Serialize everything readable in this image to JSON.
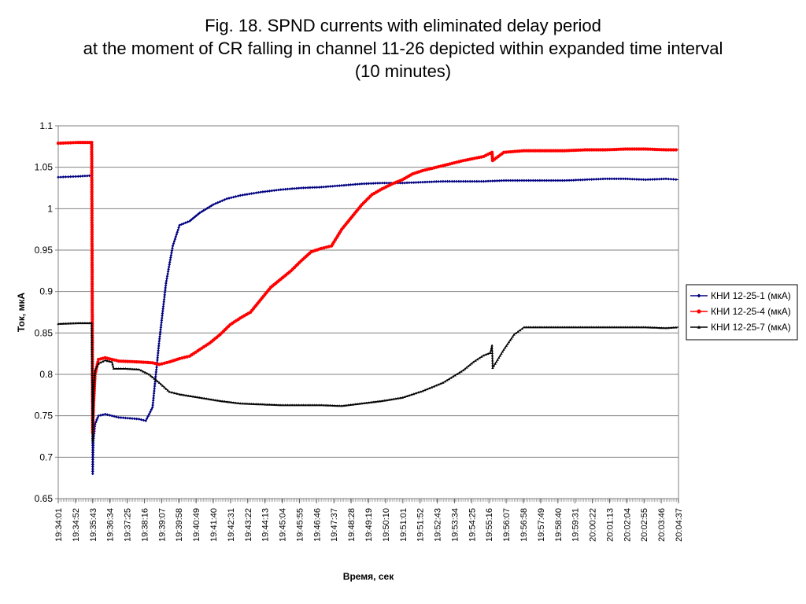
{
  "slide": {
    "title_line1": "Fig. 18. SPND currents with eliminated delay period",
    "title_line2": "at the moment of CR falling in channel 11-26 depicted within expanded time interval",
    "title_line3": "(10 minutes)"
  },
  "chart_data": {
    "type": "line",
    "xlabel": "Время, сек",
    "ylabel": "Ток, мкА",
    "ylim": [
      0.65,
      1.1
    ],
    "yticks": [
      "0.65",
      "0.7",
      "0.75",
      "0.8",
      "0.85",
      "0.9",
      "0.95",
      "1",
      "1.05",
      "1.1"
    ],
    "xlim": [
      "19:34:01",
      "20:04:37"
    ],
    "xticks": [
      "19:34:01",
      "19:34:52",
      "19:35:43",
      "19:36:34",
      "19:37:25",
      "19:38:16",
      "19:39:07",
      "19:39:58",
      "19:40:49",
      "19:41:40",
      "19:42:31",
      "19:43:22",
      "19:44:13",
      "19:45:04",
      "19:45:55",
      "19:46:46",
      "19:47:37",
      "19:48:28",
      "19:49:19",
      "19:50:10",
      "19:51:01",
      "19:51:52",
      "19:52:43",
      "19:53:34",
      "19:54:25",
      "19:55:16",
      "19:56:07",
      "19:56:58",
      "19:57:49",
      "19:58:40",
      "19:59:31",
      "20:00:22",
      "20:01:13",
      "20:02:04",
      "20:02:55",
      "20:03:46",
      "20:04:37"
    ],
    "grid": "horizontal",
    "legend_position": "right",
    "series": [
      {
        "name": "КНИ 12-25-1 (мкА)",
        "color": "#000080",
        "x": [
          "19:34:01",
          "19:35:00",
          "19:35:40",
          "19:35:43",
          "19:35:45",
          "19:35:50",
          "19:36:00",
          "19:36:20",
          "19:37:00",
          "19:38:00",
          "19:38:20",
          "19:38:40",
          "19:39:00",
          "19:39:20",
          "19:39:40",
          "19:40:00",
          "19:40:30",
          "19:41:00",
          "19:41:40",
          "19:42:20",
          "19:43:00",
          "19:44:00",
          "19:45:00",
          "19:46:00",
          "19:47:00",
          "19:48:00",
          "19:49:00",
          "19:50:00",
          "19:51:00",
          "19:52:00",
          "19:53:00",
          "19:54:00",
          "19:55:00",
          "19:56:00",
          "19:57:00",
          "19:58:00",
          "19:59:00",
          "20:00:00",
          "20:01:00",
          "20:02:00",
          "20:03:00",
          "20:04:00",
          "20:04:37"
        ],
        "y": [
          1.038,
          1.039,
          1.04,
          0.68,
          0.72,
          0.74,
          0.75,
          0.752,
          0.748,
          0.746,
          0.744,
          0.76,
          0.84,
          0.91,
          0.955,
          0.98,
          0.985,
          0.995,
          1.005,
          1.012,
          1.016,
          1.02,
          1.023,
          1.025,
          1.026,
          1.028,
          1.03,
          1.031,
          1.031,
          1.032,
          1.033,
          1.033,
          1.033,
          1.034,
          1.034,
          1.034,
          1.034,
          1.035,
          1.036,
          1.036,
          1.035,
          1.036,
          1.035
        ]
      },
      {
        "name": "КНИ 12-25-4 (мкА)",
        "color": "#ff0000",
        "x": [
          "19:34:01",
          "19:35:00",
          "19:35:40",
          "19:35:43",
          "19:35:45",
          "19:35:50",
          "19:36:00",
          "19:36:20",
          "19:37:00",
          "19:38:00",
          "19:38:40",
          "19:39:00",
          "19:39:30",
          "19:40:00",
          "19:40:30",
          "19:41:00",
          "19:41:30",
          "19:42:00",
          "19:42:30",
          "19:43:00",
          "19:43:30",
          "19:44:00",
          "19:44:30",
          "19:45:00",
          "19:45:30",
          "19:46:00",
          "19:46:30",
          "19:47:00",
          "19:47:30",
          "19:48:00",
          "19:48:30",
          "19:49:00",
          "19:49:30",
          "19:50:00",
          "19:50:30",
          "19:51:00",
          "19:51:30",
          "19:52:00",
          "19:53:00",
          "19:54:00",
          "19:55:00",
          "19:55:25",
          "19:55:27",
          "19:56:00",
          "19:57:00",
          "19:58:00",
          "19:59:00",
          "20:00:00",
          "20:01:00",
          "20:02:00",
          "20:03:00",
          "20:04:00",
          "20:04:37"
        ],
        "y": [
          1.079,
          1.08,
          1.08,
          0.73,
          0.76,
          0.8,
          0.818,
          0.82,
          0.816,
          0.815,
          0.814,
          0.812,
          0.815,
          0.819,
          0.822,
          0.83,
          0.838,
          0.848,
          0.86,
          0.868,
          0.875,
          0.89,
          0.905,
          0.915,
          0.925,
          0.937,
          0.948,
          0.952,
          0.955,
          0.975,
          0.99,
          1.005,
          1.017,
          1.024,
          1.03,
          1.035,
          1.042,
          1.046,
          1.052,
          1.058,
          1.063,
          1.068,
          1.058,
          1.068,
          1.07,
          1.07,
          1.07,
          1.071,
          1.071,
          1.072,
          1.072,
          1.071,
          1.071
        ]
      },
      {
        "name": "КНИ 12-25-7 (мкА)",
        "color": "#000000",
        "x": [
          "19:34:01",
          "19:35:00",
          "19:35:40",
          "19:35:43",
          "19:35:45",
          "19:35:50",
          "19:36:00",
          "19:36:20",
          "19:36:40",
          "19:36:45",
          "19:37:20",
          "19:38:00",
          "19:38:30",
          "19:39:00",
          "19:39:30",
          "19:40:00",
          "19:41:00",
          "19:42:00",
          "19:43:00",
          "19:44:00",
          "19:45:00",
          "19:46:00",
          "19:47:00",
          "19:48:00",
          "19:49:00",
          "19:50:00",
          "19:51:00",
          "19:52:00",
          "19:53:00",
          "19:54:00",
          "19:54:30",
          "19:55:00",
          "19:55:20",
          "19:55:25",
          "19:55:27",
          "19:56:00",
          "19:56:30",
          "19:57:00",
          "19:58:00",
          "19:59:00",
          "20:00:00",
          "20:01:00",
          "20:02:00",
          "20:03:00",
          "20:04:00",
          "20:04:37"
        ],
        "y": [
          0.861,
          0.862,
          0.862,
          0.72,
          0.78,
          0.805,
          0.813,
          0.817,
          0.815,
          0.807,
          0.807,
          0.806,
          0.8,
          0.79,
          0.779,
          0.776,
          0.772,
          0.768,
          0.765,
          0.764,
          0.763,
          0.763,
          0.763,
          0.762,
          0.765,
          0.768,
          0.772,
          0.78,
          0.79,
          0.805,
          0.815,
          0.823,
          0.826,
          0.835,
          0.808,
          0.83,
          0.848,
          0.857,
          0.857,
          0.857,
          0.857,
          0.857,
          0.857,
          0.857,
          0.856,
          0.857
        ]
      }
    ]
  }
}
